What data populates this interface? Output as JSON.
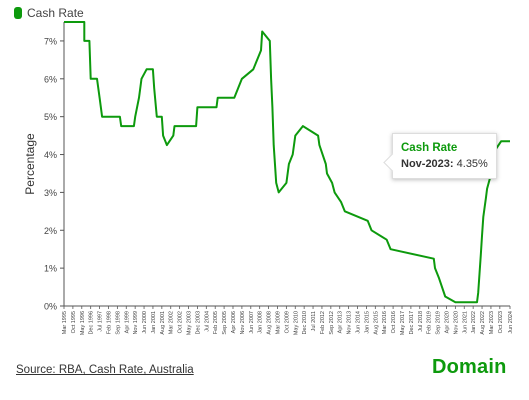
{
  "chart_data": {
    "type": "line",
    "legend": "Cash Rate",
    "ylabel": "Percentage",
    "xlabel": "",
    "ylim": [
      0,
      7.5
    ],
    "y_ticks": [
      "0%",
      "1%",
      "2%",
      "3%",
      "4%",
      "5%",
      "6%",
      "7%"
    ],
    "x_ticks": [
      "Mar 1995",
      "Oct 1995",
      "May 1996",
      "Dec 1996",
      "Jul 1997",
      "Feb 1998",
      "Sep 1998",
      "Apr 1999",
      "Nov 1999",
      "Jun 2000",
      "Jan 2001",
      "Aug 2001",
      "Mar 2002",
      "Oct 2002",
      "May 2003",
      "Dec 2003",
      "Jul 2004",
      "Feb 2005",
      "Sep 2005",
      "Apr 2006",
      "Nov 2006",
      "Jun 2007",
      "Jan 2008",
      "Aug 2008",
      "Mar 2009",
      "Oct 2009",
      "May 2010",
      "Dec 2010",
      "Jul 2011",
      "Feb 2012",
      "Sep 2012",
      "Apr 2013",
      "Nov 2013",
      "Jun 2014",
      "Jan 2015",
      "Aug 2015",
      "Mar 2016",
      "Oct 2016",
      "May 2017",
      "Dec 2017",
      "Jul 2018",
      "Feb 2019",
      "Sep 2019",
      "Apr 2020",
      "Nov 2020",
      "Jun 2021",
      "Jan 2022",
      "Aug 2022",
      "Mar 2023",
      "Oct 2023",
      "Jun 2024"
    ],
    "series": [
      {
        "name": "Cash Rate",
        "color": "#0d9a0d",
        "points": [
          [
            "Mar 1995",
            7.5
          ],
          [
            "Jul 1996",
            7.5
          ],
          [
            "Jul 1996",
            7.0
          ],
          [
            "Nov 1996",
            7.0
          ],
          [
            "Dec 1996",
            6.0
          ],
          [
            "May 1997",
            6.0
          ],
          [
            "Jul 1997",
            5.5
          ],
          [
            "Sep 1997",
            5.0
          ],
          [
            "Nov 1998",
            5.0
          ],
          [
            "Dec 1998",
            4.75
          ],
          [
            "Oct 1999",
            4.75
          ],
          [
            "Nov 1999",
            5.0
          ],
          [
            "Feb 2000",
            5.5
          ],
          [
            "Apr 2000",
            6.0
          ],
          [
            "Aug 2000",
            6.25
          ],
          [
            "Jan 2001",
            6.25
          ],
          [
            "Feb 2001",
            5.75
          ],
          [
            "Apr 2001",
            5.0
          ],
          [
            "Aug 2001",
            5.0
          ],
          [
            "Sep 2001",
            4.5
          ],
          [
            "Dec 2001",
            4.25
          ],
          [
            "May 2002",
            4.5
          ],
          [
            "Jun 2002",
            4.75
          ],
          [
            "Nov 2003",
            4.75
          ],
          [
            "Dec 2003",
            5.25
          ],
          [
            "Mar 2005",
            5.25
          ],
          [
            "Apr 2005",
            5.5
          ],
          [
            "May 2006",
            5.5
          ],
          [
            "Aug 2006",
            5.75
          ],
          [
            "Nov 2006",
            6.0
          ],
          [
            "Aug 2007",
            6.25
          ],
          [
            "Feb 2008",
            6.75
          ],
          [
            "Mar 2008",
            7.25
          ],
          [
            "Sep 2008",
            7.0
          ],
          [
            "Oct 2008",
            6.0
          ],
          [
            "Nov 2008",
            5.25
          ],
          [
            "Dec 2008",
            4.25
          ],
          [
            "Feb 2009",
            3.25
          ],
          [
            "Apr 2009",
            3.0
          ],
          [
            "Oct 2009",
            3.25
          ],
          [
            "Dec 2009",
            3.75
          ],
          [
            "Mar 2010",
            4.0
          ],
          [
            "May 2010",
            4.5
          ],
          [
            "Nov 2010",
            4.75
          ],
          [
            "Nov 2011",
            4.5
          ],
          [
            "Dec 2011",
            4.25
          ],
          [
            "May 2012",
            3.75
          ],
          [
            "Jun 2012",
            3.5
          ],
          [
            "Oct 2012",
            3.25
          ],
          [
            "Dec 2012",
            3.0
          ],
          [
            "May 2013",
            2.75
          ],
          [
            "Aug 2013",
            2.5
          ],
          [
            "Feb 2015",
            2.25
          ],
          [
            "May 2015",
            2.0
          ],
          [
            "May 2016",
            1.75
          ],
          [
            "Aug 2016",
            1.5
          ],
          [
            "Jun 2019",
            1.25
          ],
          [
            "Jul 2019",
            1.0
          ],
          [
            "Oct 2019",
            0.75
          ],
          [
            "Mar 2020",
            0.25
          ],
          [
            "Nov 2020",
            0.1
          ],
          [
            "Apr 2022",
            0.1
          ],
          [
            "May 2022",
            0.35
          ],
          [
            "Jun 2022",
            0.85
          ],
          [
            "Jul 2022",
            1.35
          ],
          [
            "Aug 2022",
            1.85
          ],
          [
            "Sep 2022",
            2.35
          ],
          [
            "Oct 2022",
            2.6
          ],
          [
            "Nov 2022",
            2.85
          ],
          [
            "Dec 2022",
            3.1
          ],
          [
            "Feb 2023",
            3.35
          ],
          [
            "Mar 2023",
            3.6
          ],
          [
            "May 2023",
            3.85
          ],
          [
            "Jun 2023",
            4.1
          ],
          [
            "Nov 2023",
            4.35
          ],
          [
            "Jun 2024",
            4.35
          ]
        ]
      }
    ]
  },
  "tooltip": {
    "title": "Cash Rate",
    "date": "Nov-2023:",
    "value": "4.35%"
  },
  "source": "Source: RBA, Cash Rate, Australia",
  "brand": "Domain"
}
